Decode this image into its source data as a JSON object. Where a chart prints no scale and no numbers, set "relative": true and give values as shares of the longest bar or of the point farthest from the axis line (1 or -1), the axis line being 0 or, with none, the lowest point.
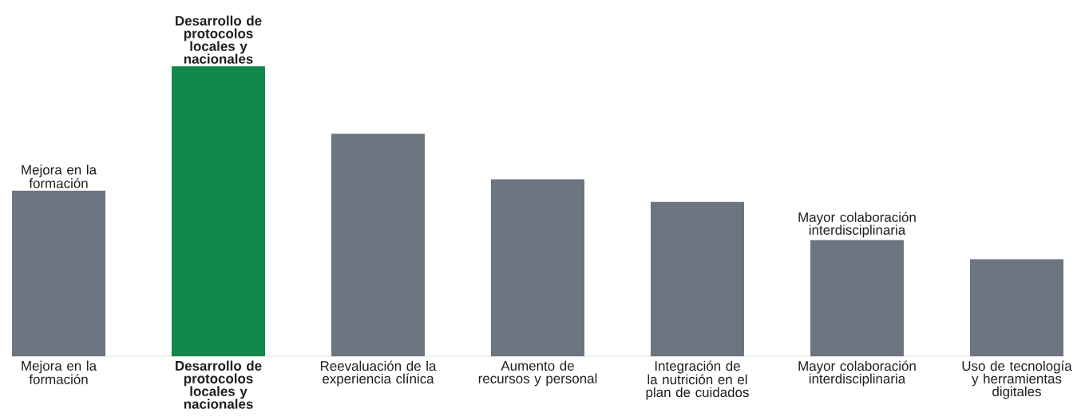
{
  "chart_data": {
    "type": "bar",
    "relative": true,
    "categories": [
      "Mejora en la formación",
      "**Desarrollo de protocolos locales y nacionales**",
      "Reevaluación de la experiencia clínica",
      "Aumento de recursos y personal",
      "Integración de la nutrición en el plan de cuidados",
      "Mayor colaboración interdisciplinaria",
      "Uso de tecnología y herramientas digitales"
    ],
    "values": [
      0.571,
      1,
      0.767,
      0.61,
      0.532,
      0.401,
      0.335
    ],
    "colors": [
      "#6c757f",
      "#12894a",
      "#6c757f",
      "#6c757f",
      "#6c757f",
      "#6c757f",
      "#6c757f"
    ],
    "annotations": [
      {
        "text": "Mejora en la formación",
        "x": "Mejora en la formación",
        "y": 0.571
      },
      {
        "text": "**Desarrollo de protocolos locales y nacionales**",
        "x": "**Desarrollo de protocolos locales y nacionales**",
        "y": 1
      },
      {
        "text": "Mayor colaboración interdisciplinaria",
        "x": "Mayor colaboración interdisciplinaria",
        "y": 0.401
      }
    ]
  }
}
